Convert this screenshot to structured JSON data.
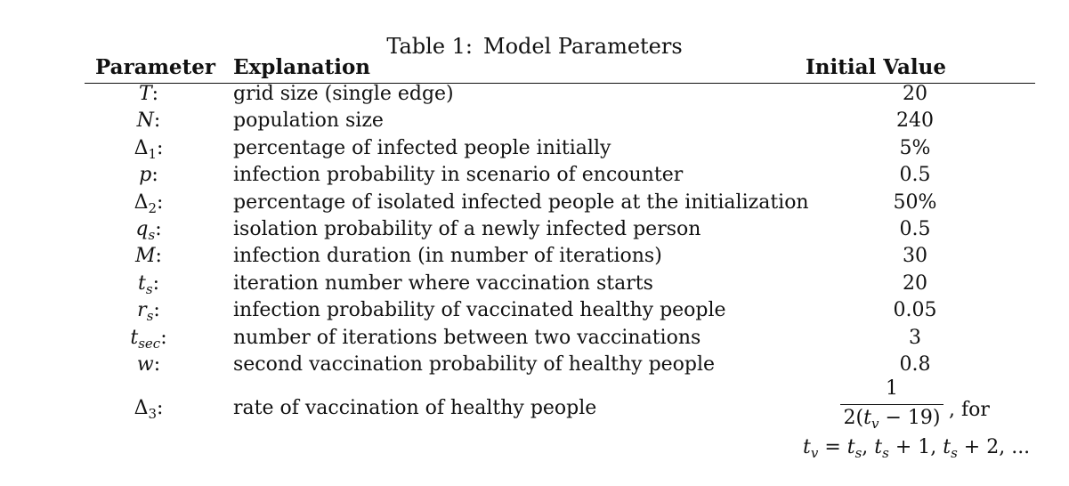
{
  "caption": {
    "label": "Table 1:",
    "title": "Model Parameters"
  },
  "headers": {
    "parameter": "Parameter",
    "explanation": "Explanation",
    "initial_value": "Initial Value"
  },
  "rows": [
    {
      "symbol": "T",
      "explanation": "grid size (single edge)",
      "value": "20"
    },
    {
      "symbol": "N",
      "explanation": "population size",
      "value": "240"
    },
    {
      "symbol": "Δ",
      "sub": "1",
      "explanation": "percentage of infected people initially",
      "value": "5%"
    },
    {
      "symbol": "p",
      "explanation": "infection probability in scenario of encounter",
      "value": "0.5"
    },
    {
      "symbol": "Δ",
      "sub": "2",
      "explanation": "percentage of isolated infected people at the initialization",
      "value": "50%"
    },
    {
      "symbol": "q",
      "sub": "s",
      "explanation": "isolation probability of a newly infected person",
      "value": "0.5"
    },
    {
      "symbol": "M",
      "explanation": "infection duration (in number of iterations)",
      "value": "30"
    },
    {
      "symbol": "t",
      "sub": "s",
      "explanation": "iteration number where vaccination starts",
      "value": "20"
    },
    {
      "symbol": "r",
      "sub": "s",
      "explanation": "infection probability of vaccinated healthy people",
      "value": "0.05"
    },
    {
      "symbol": "t",
      "sub": "sec",
      "explanation": "number of iterations between two vaccinations",
      "value": "3"
    },
    {
      "symbol": "w",
      "explanation": "second vaccination probability of healthy people",
      "value": "0.8"
    },
    {
      "symbol": "Δ",
      "sub": "3",
      "explanation": "rate of vaccination of healthy people",
      "value": ""
    }
  ],
  "last_row_formula": {
    "numerator": "1",
    "denominator": "2(tv − 19)",
    "suffix": ", for",
    "range": "tv = ts, ts + 1, ts + 2, ..."
  }
}
